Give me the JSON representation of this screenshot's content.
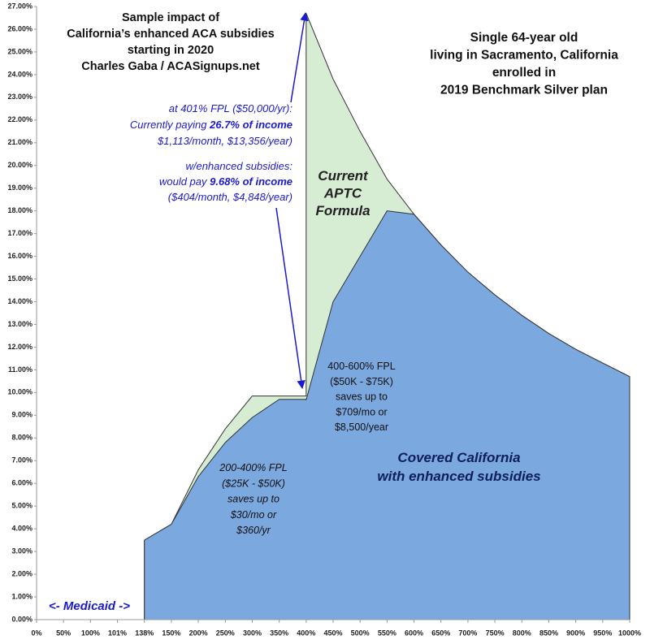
{
  "chart_data": {
    "type": "area",
    "x": [
      4,
      5,
      6,
      7,
      8,
      9,
      10,
      10,
      11,
      12,
      13,
      14,
      15,
      16,
      17,
      18,
      19,
      20,
      21,
      22
    ],
    "series": [
      {
        "color": "#d6ecd3",
        "values": [
          3.5,
          4.2,
          6.6,
          8.4,
          9.85,
          9.85,
          9.85,
          26.7,
          23.8,
          21.5,
          19.4,
          17.85,
          16.5,
          15.3,
          14.3,
          13.4,
          12.6,
          11.9,
          11.3,
          10.7
        ]
      },
      {
        "color": "#7ca8e0",
        "values": [
          3.5,
          4.2,
          6.3,
          7.8,
          8.9,
          9.7,
          9.7,
          9.68,
          14.0,
          16.0,
          18.0,
          17.85,
          16.5,
          15.3,
          14.3,
          13.4,
          12.6,
          11.9,
          11.3,
          10.7
        ]
      }
    ],
    "xlim": [
      0,
      22
    ],
    "xticks": [
      {
        "value": 0,
        "label": "0%"
      },
      {
        "value": 1,
        "label": "50%"
      },
      {
        "value": 2,
        "label": "100%"
      },
      {
        "value": 3,
        "label": "101%"
      },
      {
        "value": 4,
        "label": "138%"
      },
      {
        "value": 5,
        "label": "150%"
      },
      {
        "value": 6,
        "label": "200%"
      },
      {
        "value": 7,
        "label": "250%"
      },
      {
        "value": 8,
        "label": "300%"
      },
      {
        "value": 9,
        "label": "350%"
      },
      {
        "value": 10,
        "label": "400%"
      },
      {
        "value": 11,
        "label": "450%"
      },
      {
        "value": 12,
        "label": "500%"
      },
      {
        "value": 13,
        "label": "550%"
      },
      {
        "value": 14,
        "label": "600%"
      },
      {
        "value": 15,
        "label": "650%"
      },
      {
        "value": 16,
        "label": "700%"
      },
      {
        "value": 17,
        "label": "750%"
      },
      {
        "value": 18,
        "label": "800%"
      },
      {
        "value": 19,
        "label": "850%"
      },
      {
        "value": 20,
        "label": "900%"
      },
      {
        "value": 21,
        "label": "950%"
      },
      {
        "value": 22,
        "label": "1000%"
      }
    ],
    "ylim": [
      0,
      27
    ],
    "yticks": [
      {
        "value": 0,
        "label": "0.00%"
      },
      {
        "value": 1,
        "label": "1.00%"
      },
      {
        "value": 2,
        "label": "2.00%"
      },
      {
        "value": 3,
        "label": "3.00%"
      },
      {
        "value": 4,
        "label": "4.00%"
      },
      {
        "value": 5,
        "label": "5.00%"
      },
      {
        "value": 6,
        "label": "6.00%"
      },
      {
        "value": 7,
        "label": "7.00%"
      },
      {
        "value": 8,
        "label": "8.00%"
      },
      {
        "value": 9,
        "label": "9.00%"
      },
      {
        "value": 10,
        "label": "10.00%"
      },
      {
        "value": 11,
        "label": "11.00%"
      },
      {
        "value": 12,
        "label": "12.00%"
      },
      {
        "value": 13,
        "label": "13.00%"
      },
      {
        "value": 14,
        "label": "14.00%"
      },
      {
        "value": 15,
        "label": "15.00%"
      },
      {
        "value": 16,
        "label": "16.00%"
      },
      {
        "value": 17,
        "label": "17.00%"
      },
      {
        "value": 18,
        "label": "18.00%"
      },
      {
        "value": 19,
        "label": "19.00%"
      },
      {
        "value": 20,
        "label": "20.00%"
      },
      {
        "value": 21,
        "label": "21.00%"
      },
      {
        "value": 22,
        "label": "22.00%"
      },
      {
        "value": 23,
        "label": "23.00%"
      },
      {
        "value": 24,
        "label": "24.00%"
      },
      {
        "value": 25,
        "label": "25.00%"
      },
      {
        "value": 26,
        "label": "26.00%"
      },
      {
        "value": 27,
        "label": "27.00%"
      }
    ],
    "annotations": {
      "title": [
        [
          "Sample impact of"
        ],
        [
          "California’s enhanced ACA subsidies"
        ],
        [
          "starting in 2020"
        ],
        [
          "Charles Gaba / ACASignups.net"
        ]
      ],
      "subtitle": [
        [
          "Single 64-year old"
        ],
        [
          "living in Sacramento, California"
        ],
        [
          "enrolled in"
        ],
        [
          "2019 Benchmark Silver plan"
        ]
      ],
      "note_401": [
        [
          "at 401% FPL ($50,000/yr):"
        ],
        [
          "Currently paying ",
          "26.7% of income"
        ],
        [
          "$1,113/month, $13,356/year)"
        ]
      ],
      "note_enhanced": [
        [
          "w/enhanced subsidies:"
        ],
        [
          "would pay ",
          "9.68% of income"
        ],
        [
          "($404/month, $4,848/year)"
        ]
      ],
      "aptc": [
        [
          "Current"
        ],
        [
          "APTC"
        ],
        [
          "Formula"
        ]
      ],
      "band_400_600": [
        [
          "400-600% FPL"
        ],
        [
          "($50K - $75K)"
        ],
        [
          "saves up to"
        ],
        [
          "$709/mo or"
        ],
        [
          "$8,500/year"
        ]
      ],
      "band_200_400": [
        [
          "200-400% FPL"
        ],
        [
          "($25K - $50K)"
        ],
        [
          "saves up to"
        ],
        [
          "$30/mo or"
        ],
        [
          "$360/yr"
        ]
      ],
      "covered": [
        [
          "Covered California"
        ],
        [
          "with enhanced subsidies"
        ]
      ],
      "medicaid": [
        [
          "<- Medicaid ->"
        ]
      ]
    }
  }
}
